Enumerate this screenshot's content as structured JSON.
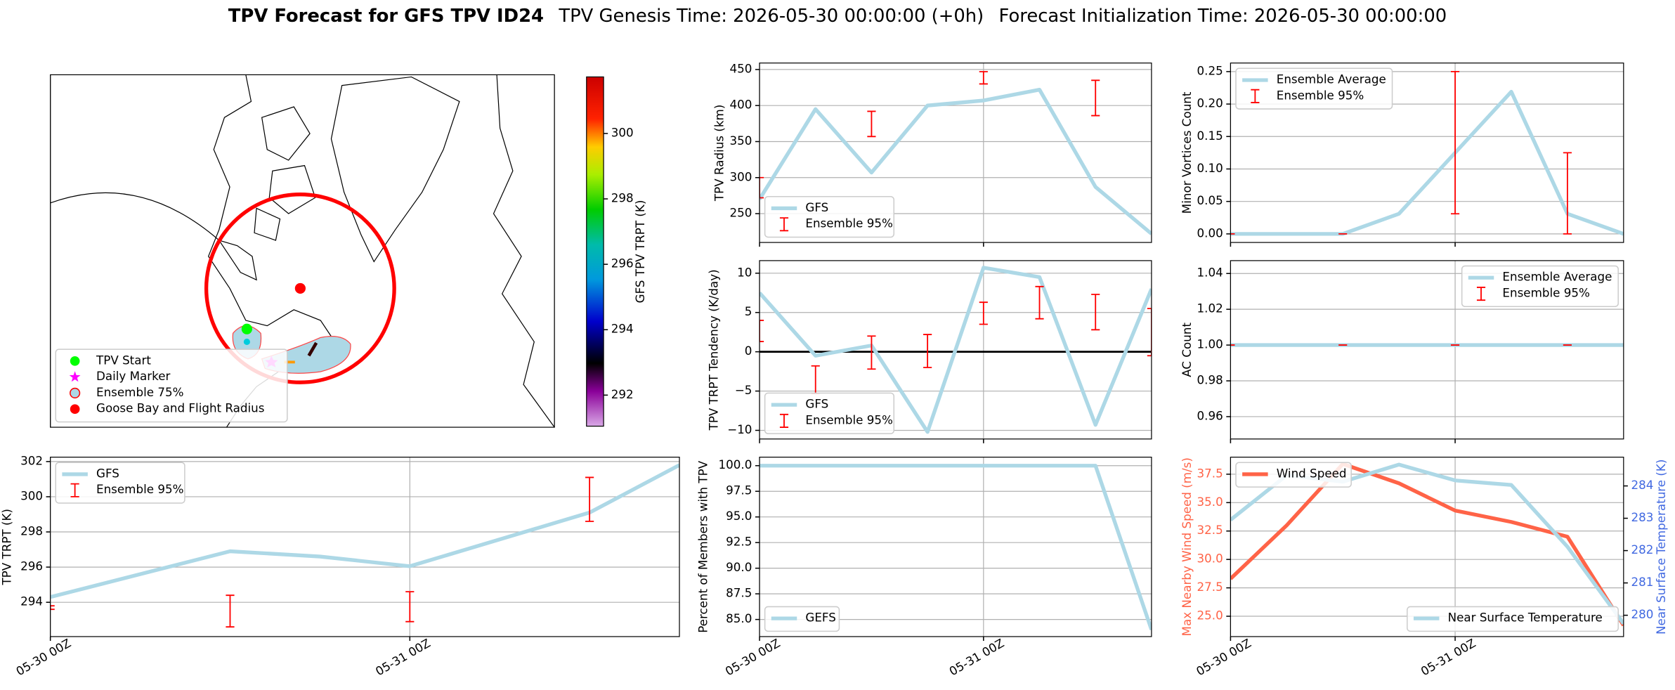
{
  "header": {
    "title": "TPV Forecast for GFS TPV ID24",
    "subtitle": [
      "TPV Genesis Time: 2026-05-30 00:00:00 (+0h)",
      "Forecast Initialization Time: 2026-05-30 00:00:00"
    ]
  },
  "chart_data": [
    {
      "type": "map",
      "legend": "lower left",
      "legend_entries": [
        {
          "name": "TPV Start",
          "color": "#00ff00",
          "marker": "circle"
        },
        {
          "name": "Daily Marker",
          "color": "#ff00ff",
          "marker": "star"
        },
        {
          "name": "Ensemble 75%",
          "color": "#add8e6",
          "edgecolor": "#ff0000",
          "marker": "circle"
        },
        {
          "name": "Goose Bay and Flight Radius",
          "color": "#ff0000",
          "marker": "circle"
        }
      ],
      "colorbar": {
        "label": "GFS TPV TRPT (K)",
        "lim": [
          291.05,
          301.73
        ],
        "ticks": [
          292,
          294,
          296,
          298,
          300
        ]
      }
    },
    {
      "type": "line",
      "ylabel": "TPV TRPT (K)",
      "xlim": [
        0,
        42
      ],
      "xticks": [
        {
          "value": 0,
          "label": "05-30 00Z"
        },
        {
          "value": 24,
          "label": "05-31 00Z"
        }
      ],
      "ylim": [
        292.05,
        302.25
      ],
      "yticks": [
        294,
        296,
        298,
        300,
        302
      ],
      "grid": true,
      "legend": "upper left",
      "x": [
        0,
        12,
        18,
        24,
        36,
        42
      ],
      "series": [
        {
          "name": "GFS",
          "type": "line",
          "color": "#add8e6",
          "values": [
            294.3,
            296.9,
            296.6,
            296.05,
            299.1,
            301.8
          ]
        },
        {
          "name": "Ensemble 95%",
          "type": "errorbar",
          "color": "#ff0000",
          "x": [
            0,
            12,
            24,
            36
          ],
          "low": [
            293.6,
            292.6,
            292.9,
            298.6
          ],
          "high": [
            293.8,
            294.4,
            294.6,
            301.1
          ]
        }
      ]
    },
    {
      "type": "line",
      "ylabel": "TPV Radius (km)",
      "xlim": [
        0,
        42
      ],
      "xticks": [
        0,
        24
      ],
      "ylim": [
        210,
        459
      ],
      "yticks": [
        250,
        300,
        350,
        400,
        450
      ],
      "grid": true,
      "legend": "lower left",
      "x": [
        0,
        6,
        12,
        18,
        24,
        30,
        36,
        42
      ],
      "series": [
        {
          "name": "GFS",
          "type": "line",
          "color": "#add8e6",
          "values": [
            270,
            395,
            307,
            400,
            407,
            422,
            287,
            222
          ]
        },
        {
          "name": "Ensemble 95%",
          "type": "errorbar",
          "color": "#ff0000",
          "x": [
            0,
            12,
            24,
            36
          ],
          "low": [
            272,
            357,
            430,
            386
          ],
          "high": [
            300,
            392,
            447,
            435
          ]
        }
      ]
    },
    {
      "type": "line",
      "ylabel": "TPV TRPT Tendency (K/day)",
      "xlim": [
        0,
        42
      ],
      "xticks": [
        0,
        24
      ],
      "ylim": [
        -11.1,
        11.6
      ],
      "yticks": [
        {
          "value": -10,
          "label": "−10"
        },
        {
          "value": -5,
          "label": "−5"
        },
        0,
        5,
        10
      ],
      "grid": true,
      "legend": "lower left",
      "hlines": [
        0
      ],
      "x": [
        0,
        6,
        12,
        18,
        24,
        30,
        36,
        42
      ],
      "series": [
        {
          "name": "GFS",
          "type": "line",
          "color": "#add8e6",
          "values": [
            7.5,
            -0.5,
            0.8,
            -10.2,
            10.7,
            9.5,
            -9.3,
            8.0
          ]
        },
        {
          "name": "Ensemble 95%",
          "type": "errorbar",
          "color": "#ff0000",
          "x": [
            0,
            6,
            12,
            18,
            24,
            30,
            36,
            42
          ],
          "low": [
            1.3,
            -5.3,
            -2.2,
            -2.0,
            3.5,
            4.2,
            2.8,
            -0.5
          ],
          "high": [
            4.0,
            -1.8,
            2.0,
            2.2,
            6.3,
            8.3,
            7.3,
            5.5
          ]
        }
      ]
    },
    {
      "type": "line",
      "ylabel": "Percent of Members with TPV",
      "xlim": [
        0,
        42
      ],
      "xticks": [
        {
          "value": 0,
          "label": "05-30 00Z"
        },
        {
          "value": 24,
          "label": "05-31 00Z"
        }
      ],
      "ylim": [
        83.33,
        100.83
      ],
      "yticks": [
        {
          "value": 85,
          "label": "85.0"
        },
        {
          "value": 87.5,
          "label": "87.5"
        },
        {
          "value": 90,
          "label": "90.0"
        },
        {
          "value": 92.5,
          "label": "92.5"
        },
        {
          "value": 95,
          "label": "95.0"
        },
        {
          "value": 97.5,
          "label": "97.5"
        },
        {
          "value": 100,
          "label": "100.0"
        }
      ],
      "grid": true,
      "legend": "lower left",
      "x": [
        0,
        6,
        12,
        18,
        24,
        30,
        36,
        42
      ],
      "series": [
        {
          "name": "GEFS",
          "type": "line",
          "color": "#add8e6",
          "values": [
            100,
            100,
            100,
            100,
            100,
            100,
            100,
            84.0
          ]
        }
      ]
    },
    {
      "type": "line",
      "ylabel": "Minor Vortices Count",
      "xlim": [
        0,
        42
      ],
      "xticks": [
        0,
        24
      ],
      "ylim": [
        -0.0132,
        0.2632
      ],
      "yticks": [
        {
          "value": 0,
          "label": "0.00"
        },
        {
          "value": 0.05,
          "label": "0.05"
        },
        {
          "value": 0.1,
          "label": "0.10"
        },
        {
          "value": 0.15,
          "label": "0.15"
        },
        {
          "value": 0.2,
          "label": "0.20"
        },
        {
          "value": 0.25,
          "label": "0.25"
        }
      ],
      "grid": true,
      "legend": "upper left",
      "x": [
        0,
        6,
        12,
        18,
        24,
        30,
        36,
        42
      ],
      "series": [
        {
          "name": "Ensemble Average",
          "type": "line",
          "color": "#add8e6",
          "values": [
            0,
            0,
            0,
            0.031,
            0.125,
            0.219,
            0.031,
            0
          ]
        },
        {
          "name": "Ensemble 95%",
          "type": "errorbar",
          "color": "#ff0000",
          "x": [
            0,
            12,
            24,
            36
          ],
          "low": [
            0,
            0,
            0.031,
            0
          ],
          "high": [
            0,
            0,
            0.25,
            0.125
          ]
        }
      ]
    },
    {
      "type": "line",
      "ylabel": "AC Count",
      "xlim": [
        0,
        42
      ],
      "xticks": [
        0,
        24
      ],
      "ylim": [
        0.9475,
        1.0472
      ],
      "yticks": [
        {
          "value": 0.96,
          "label": "0.96"
        },
        {
          "value": 0.98,
          "label": "0.98"
        },
        {
          "value": 1.0,
          "label": "1.00"
        },
        {
          "value": 1.02,
          "label": "1.02"
        },
        {
          "value": 1.04,
          "label": "1.04"
        }
      ],
      "grid": true,
      "legend": "upper right",
      "x": [
        0,
        6,
        12,
        18,
        24,
        30,
        36,
        42
      ],
      "series": [
        {
          "name": "Ensemble Average",
          "type": "line",
          "color": "#add8e6",
          "values": [
            1,
            1,
            1,
            1,
            1,
            1,
            1,
            1
          ]
        },
        {
          "name": "Ensemble 95%",
          "type": "errorbar",
          "color": "#ff0000",
          "x": [
            0,
            12,
            24,
            36
          ],
          "low": [
            1,
            1,
            1,
            1
          ],
          "high": [
            1,
            1,
            1,
            1
          ]
        }
      ]
    },
    {
      "type": "line",
      "ylabel": "Max Nearby Wind Speed (m/s)",
      "ylabel_color": "#ff6347",
      "y2label": "Near Surface Temperature (K)",
      "y2label_color": "#4169e1",
      "xlim": [
        0,
        42
      ],
      "xticks": [
        {
          "value": 0,
          "label": "05-30 00Z"
        },
        {
          "value": 24,
          "label": "05-31 00Z"
        }
      ],
      "ylim": [
        23.21,
        39.0
      ],
      "yticks": [
        {
          "value": 25,
          "label": "25.0"
        },
        {
          "value": 27.5,
          "label": "27.5"
        },
        {
          "value": 30,
          "label": "30.0"
        },
        {
          "value": 32.5,
          "label": "32.5"
        },
        {
          "value": 35,
          "label": "35.0"
        },
        {
          "value": 37.5,
          "label": "37.5"
        }
      ],
      "y2lim": [
        279.34,
        284.89
      ],
      "y2ticks": [
        280,
        281,
        282,
        283,
        284
      ],
      "grid": true,
      "legend": "upper left",
      "legend2": "lower right",
      "x": [
        0,
        6,
        12,
        18,
        24,
        30,
        36,
        42
      ],
      "series": [
        {
          "name": "Wind Speed",
          "type": "line",
          "color": "#ff6347",
          "values": [
            28.3,
            33.0,
            38.4,
            36.7,
            34.3,
            33.3,
            32.0,
            24.2
          ]
        },
        {
          "name": "Near Surface Temperature",
          "type": "line",
          "axis": "y2",
          "color": "#add8e6",
          "values": [
            282.95,
            284.33,
            284.13,
            284.66,
            284.17,
            284.03,
            282.12,
            279.74
          ]
        }
      ]
    }
  ]
}
